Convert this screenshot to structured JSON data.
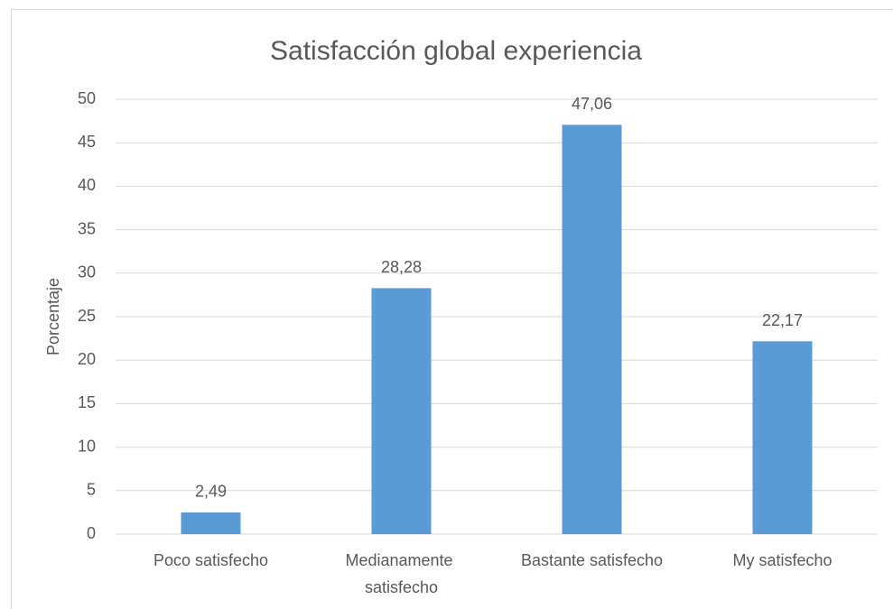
{
  "chart_data": {
    "type": "bar",
    "title": "Satisfacción global experiencia",
    "y_label": "Porcentaje",
    "categories": [
      "Poco satisfecho",
      "Medianamente satisfecho",
      "Bastante satisfecho",
      "My satisfecho"
    ],
    "values": [
      2.49,
      28.28,
      47.06,
      22.17
    ],
    "value_labels": [
      "2,49",
      "28,28",
      "47,06",
      "22,17"
    ],
    "color": "#5b9bd5",
    "ylim": [
      0,
      50
    ],
    "yticks": [
      0,
      5,
      10,
      15,
      20,
      25,
      30,
      35,
      40,
      45,
      50
    ],
    "grid": true
  }
}
